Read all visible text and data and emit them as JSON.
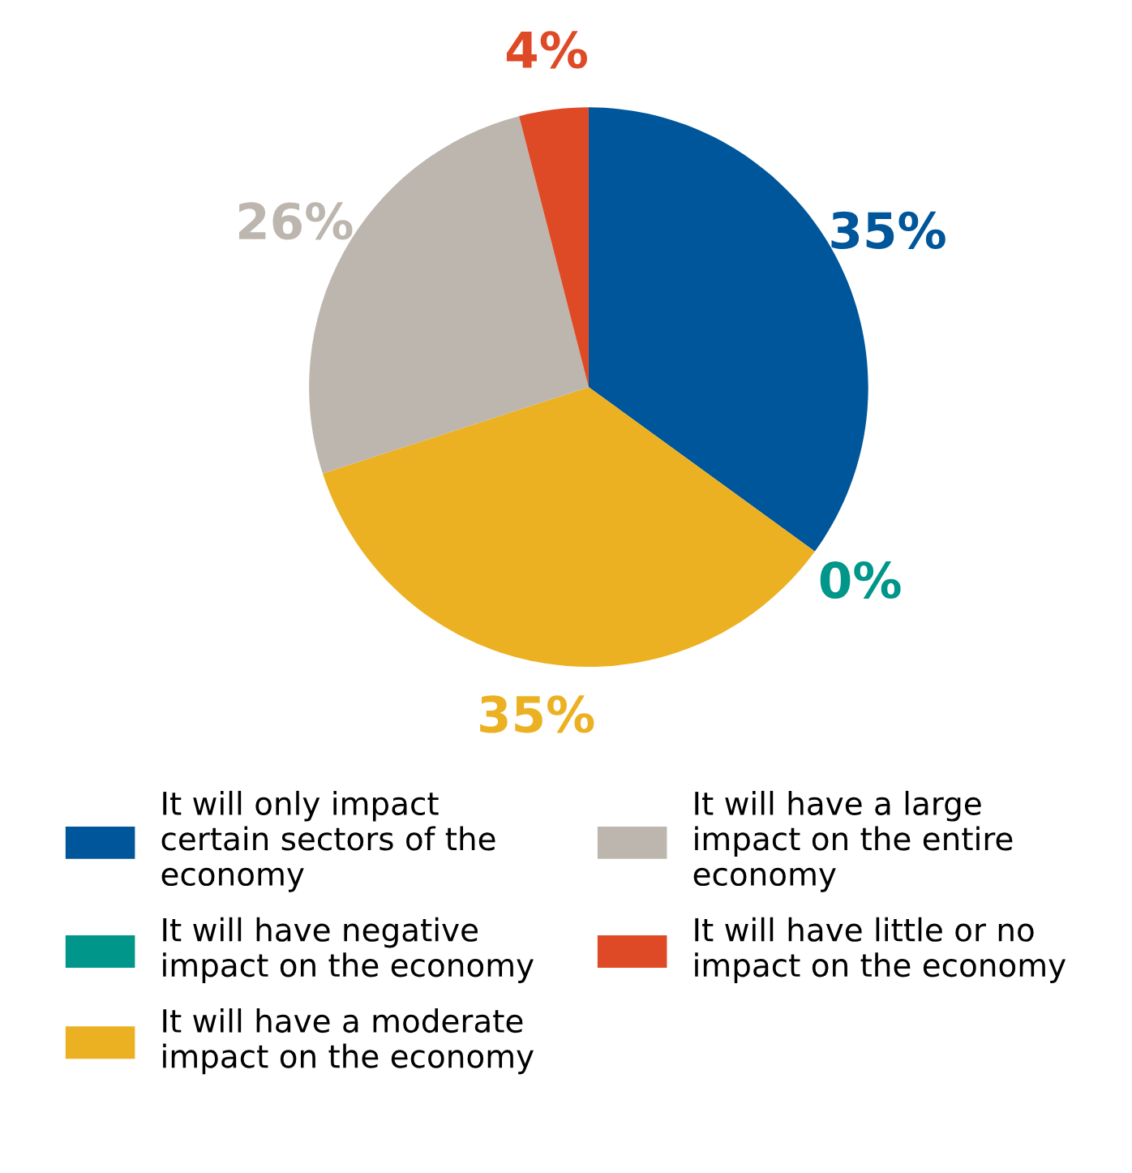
{
  "chart_data": {
    "type": "pie",
    "categories": [
      "It will only impact certain sectors of the economy",
      "It will have negative impact on the economy",
      "It will have a moderate impact on the economy",
      "It will have a large impact on the entire economy",
      "It will have little or no impact on the economy"
    ],
    "values": [
      35,
      0,
      35,
      26,
      4
    ],
    "colors": [
      "#00569a",
      "#00968a",
      "#ecb122",
      "#bdb6ae",
      "#df4a26"
    ],
    "value_labels": [
      "35%",
      "0%",
      "35%",
      "26%",
      "4%"
    ],
    "legend": "bottom"
  }
}
